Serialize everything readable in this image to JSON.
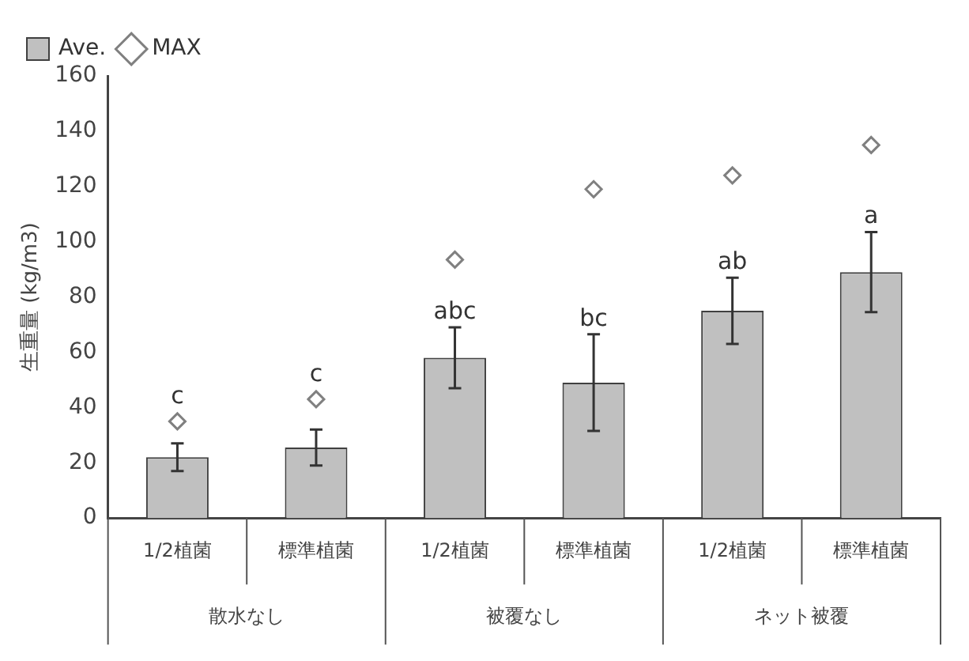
{
  "chart_data": {
    "type": "bar",
    "ylabel": "生重量 (kg/m3)",
    "categories": [
      "1/2植菌",
      "標準植菌",
      "1/2植菌",
      "標準植菌",
      "1/2植菌",
      "標準植菌"
    ],
    "series": [
      {
        "name": "Ave.",
        "color": "#c0c0c0",
        "values": [
          22,
          25.5,
          58,
          49,
          75,
          89
        ],
        "errors": [
          5,
          6.5,
          11,
          17.5,
          12,
          14.5
        ]
      },
      {
        "name": "MAX",
        "type": "scatter",
        "color": "#808080",
        "marker": "diamond",
        "values": [
          35,
          43,
          93.5,
          119,
          124,
          135
        ]
      }
    ],
    "annotations": [
      "c",
      "c",
      "abc",
      "bc",
      "ab",
      "a",
      "散水なし",
      "被覆なし",
      "ネット被覆"
    ],
    "ylim": [
      0,
      160
    ],
    "yticks": [
      0,
      20,
      40,
      60,
      80,
      100,
      120,
      140,
      160
    ],
    "grid": false,
    "legend": "top left"
  }
}
